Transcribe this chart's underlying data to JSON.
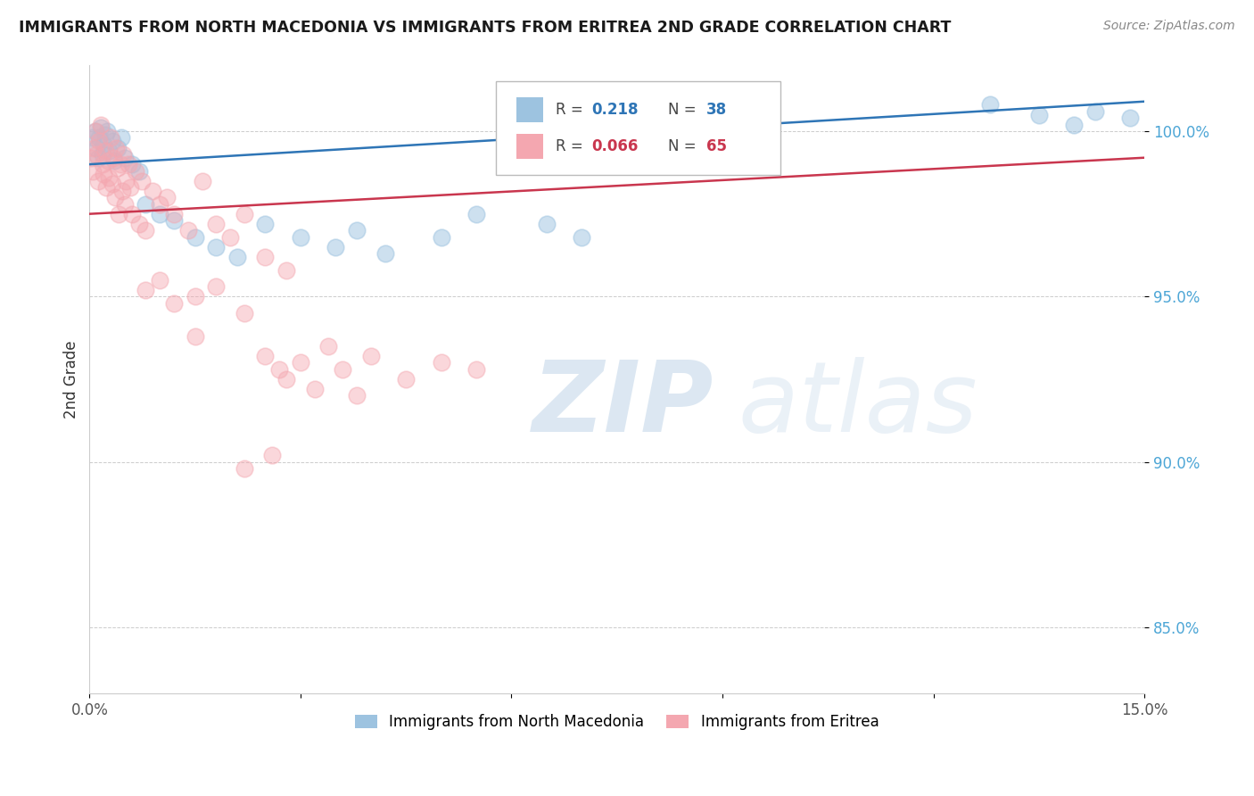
{
  "title": "IMMIGRANTS FROM NORTH MACEDONIA VS IMMIGRANTS FROM ERITREA 2ND GRADE CORRELATION CHART",
  "source": "Source: ZipAtlas.com",
  "ylabel": "2nd Grade",
  "xlim": [
    0.0,
    15.0
  ],
  "ylim": [
    83.0,
    102.0
  ],
  "yticks": [
    85.0,
    90.0,
    95.0,
    100.0
  ],
  "ytick_labels": [
    "85.0%",
    "90.0%",
    "95.0%",
    "100.0%"
  ],
  "xticks": [
    0.0,
    3.0,
    6.0,
    9.0,
    12.0,
    15.0
  ],
  "xtick_labels": [
    "0.0%",
    "",
    "",
    "",
    "",
    "15.0%"
  ],
  "legend_blue_label": "Immigrants from North Macedonia",
  "legend_pink_label": "Immigrants from Eritrea",
  "R_blue": 0.218,
  "N_blue": 38,
  "R_pink": 0.066,
  "N_pink": 65,
  "blue_color": "#9dc3e0",
  "pink_color": "#f4a7b0",
  "blue_line_color": "#2e75b6",
  "pink_line_color": "#c9364e",
  "background_color": "#ffffff",
  "blue_x": [
    0.05,
    0.08,
    0.1,
    0.12,
    0.14,
    0.16,
    0.18,
    0.2,
    0.22,
    0.25,
    0.28,
    0.32,
    0.35,
    0.4,
    0.45,
    0.5,
    0.6,
    0.7,
    0.8,
    1.0,
    1.2,
    1.5,
    1.8,
    2.1,
    2.5,
    3.0,
    3.5,
    3.8,
    4.2,
    5.0,
    5.5,
    6.5,
    7.0,
    12.8,
    13.5,
    14.0,
    14.3,
    14.8
  ],
  "blue_y": [
    99.8,
    100.0,
    99.5,
    99.2,
    99.8,
    100.1,
    99.3,
    99.6,
    99.9,
    100.0,
    99.4,
    99.7,
    99.1,
    99.5,
    99.8,
    99.2,
    99.0,
    98.8,
    97.8,
    97.5,
    97.3,
    96.8,
    96.5,
    96.2,
    97.2,
    96.8,
    96.5,
    97.0,
    96.3,
    96.8,
    97.5,
    97.2,
    96.8,
    100.8,
    100.5,
    100.2,
    100.6,
    100.4
  ],
  "pink_x": [
    0.02,
    0.04,
    0.06,
    0.08,
    0.1,
    0.12,
    0.14,
    0.16,
    0.18,
    0.2,
    0.22,
    0.24,
    0.26,
    0.28,
    0.3,
    0.32,
    0.34,
    0.36,
    0.38,
    0.4,
    0.42,
    0.44,
    0.46,
    0.48,
    0.5,
    0.52,
    0.55,
    0.58,
    0.6,
    0.65,
    0.7,
    0.75,
    0.8,
    0.9,
    1.0,
    1.1,
    1.2,
    1.4,
    1.6,
    1.8,
    2.0,
    2.2,
    2.5,
    2.8,
    1.5,
    2.2,
    2.5,
    2.7,
    2.8,
    3.0,
    3.2,
    3.4,
    3.6,
    3.8,
    4.0,
    4.5,
    5.0,
    5.5,
    0.8,
    1.0,
    1.2,
    1.5,
    1.8,
    2.2,
    2.6
  ],
  "pink_y": [
    99.2,
    98.8,
    99.5,
    100.0,
    99.3,
    98.5,
    99.7,
    100.2,
    99.0,
    98.7,
    99.4,
    98.3,
    99.1,
    98.6,
    99.8,
    98.4,
    99.2,
    98.0,
    99.5,
    98.9,
    97.5,
    99.0,
    98.2,
    99.3,
    97.8,
    98.5,
    99.0,
    98.3,
    97.5,
    98.8,
    97.2,
    98.5,
    97.0,
    98.2,
    97.8,
    98.0,
    97.5,
    97.0,
    98.5,
    97.2,
    96.8,
    97.5,
    96.2,
    95.8,
    93.8,
    94.5,
    93.2,
    92.8,
    92.5,
    93.0,
    92.2,
    93.5,
    92.8,
    92.0,
    93.2,
    92.5,
    93.0,
    92.8,
    95.2,
    95.5,
    94.8,
    95.0,
    95.3,
    89.8,
    90.2
  ]
}
